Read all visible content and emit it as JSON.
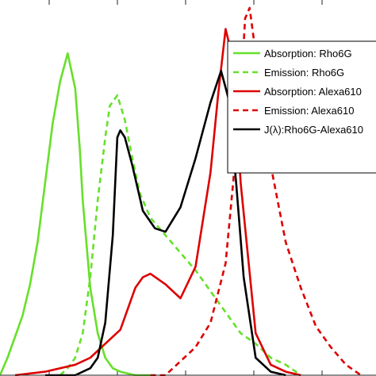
{
  "chart_data": {
    "type": "line",
    "title": "",
    "xlabel": "",
    "ylabel": "",
    "xlim": [
      450,
      700
    ],
    "ylim": [
      0,
      1.05
    ],
    "grid": false,
    "legend_position": "top-right",
    "series": [
      {
        "name": "Absorption: Rho6G",
        "color": "#66e02a",
        "style": "solid",
        "x": [
          450,
          455,
          460,
          465,
          470,
          475,
          480,
          485,
          490,
          495,
          500,
          503,
          505,
          510,
          515,
          520,
          525,
          530,
          540,
          550
        ],
        "y": [
          0.0,
          0.05,
          0.11,
          0.17,
          0.26,
          0.38,
          0.55,
          0.72,
          0.84,
          0.92,
          0.82,
          0.65,
          0.5,
          0.25,
          0.12,
          0.05,
          0.02,
          0.01,
          0.0,
          0.0
        ]
      },
      {
        "name": "Emission: Rho6G",
        "color": "#66e02a",
        "style": "dashed",
        "x": [
          490,
          495,
          500,
          505,
          510,
          515,
          520,
          523,
          528,
          533,
          538,
          543,
          550,
          560,
          570,
          580,
          590,
          600,
          610,
          620,
          630,
          640,
          650
        ],
        "y": [
          0.0,
          0.02,
          0.05,
          0.12,
          0.28,
          0.5,
          0.68,
          0.77,
          0.8,
          0.73,
          0.62,
          0.52,
          0.45,
          0.4,
          0.35,
          0.3,
          0.24,
          0.18,
          0.12,
          0.09,
          0.05,
          0.03,
          0.0
        ]
      },
      {
        "name": "Absorption: Alexa610",
        "color": "#dd0000",
        "style": "solid",
        "x": [
          460,
          480,
          500,
          510,
          520,
          530,
          540,
          545,
          550,
          560,
          570,
          580,
          590,
          595,
          600,
          605,
          610,
          620,
          630,
          640,
          650
        ],
        "y": [
          0.0,
          0.01,
          0.03,
          0.05,
          0.09,
          0.13,
          0.25,
          0.28,
          0.29,
          0.26,
          0.22,
          0.31,
          0.58,
          0.8,
          0.99,
          0.9,
          0.55,
          0.12,
          0.03,
          0.01,
          0.0
        ]
      },
      {
        "name": "Emission: Alexa610",
        "color": "#dd0000",
        "style": "dashed",
        "x": [
          550,
          560,
          570,
          580,
          590,
          600,
          605,
          610,
          613,
          616,
          620,
          630,
          640,
          650,
          660,
          670,
          680,
          690
        ],
        "y": [
          0.0,
          0.0,
          0.04,
          0.08,
          0.15,
          0.32,
          0.55,
          0.8,
          1.02,
          1.05,
          0.92,
          0.6,
          0.38,
          0.25,
          0.14,
          0.08,
          0.03,
          0.0
        ]
      },
      {
        "name": "J(λ):Rho6G-Alexa610",
        "color": "#000000",
        "style": "solid",
        "x": [
          480,
          500,
          510,
          515,
          520,
          525,
          528,
          530,
          533,
          538,
          545,
          553,
          560,
          570,
          580,
          590,
          597,
          602,
          607,
          612,
          620,
          630,
          640
        ],
        "y": [
          0.0,
          0.0,
          0.02,
          0.05,
          0.15,
          0.4,
          0.68,
          0.7,
          0.68,
          0.6,
          0.47,
          0.42,
          0.41,
          0.48,
          0.62,
          0.78,
          0.87,
          0.79,
          0.55,
          0.28,
          0.05,
          0.01,
          0.0
        ]
      }
    ]
  }
}
